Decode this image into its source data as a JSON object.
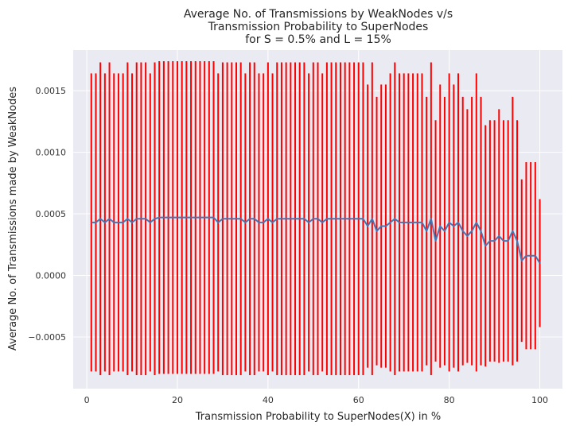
{
  "chart_data": {
    "type": "line",
    "title_lines": [
      "Average No. of Transmissions by WeakNodes v/s",
      "Transmission Probability to SuperNodes",
      "for S = 0.5% and L = 15%"
    ],
    "xlabel": "Transmission Probability to SuperNodes(X) in %",
    "ylabel": "Average No. of Transmissions made by WeakNodes",
    "xlim": [
      -3,
      105
    ],
    "ylim": [
      -0.00092,
      0.00183
    ],
    "xticks": [
      0,
      20,
      40,
      60,
      80,
      100
    ],
    "xtick_labels": [
      "0",
      "20",
      "40",
      "60",
      "80",
      "100"
    ],
    "yticks": [
      -0.0005,
      0.0,
      0.0005,
      0.001,
      0.0015
    ],
    "ytick_labels": [
      "−0.0005",
      "0.0000",
      "0.0005",
      "0.0010",
      "0.0015"
    ],
    "grid": true,
    "background": "#eaeaf2",
    "line_color": "#4c72b0",
    "errorbar_color": "#ff0000",
    "x": [
      1,
      2,
      3,
      4,
      5,
      6,
      7,
      8,
      9,
      10,
      11,
      12,
      13,
      14,
      15,
      16,
      17,
      18,
      19,
      20,
      21,
      22,
      23,
      24,
      25,
      26,
      27,
      28,
      29,
      30,
      31,
      32,
      33,
      34,
      35,
      36,
      37,
      38,
      39,
      40,
      41,
      42,
      43,
      44,
      45,
      46,
      47,
      48,
      49,
      50,
      51,
      52,
      53,
      54,
      55,
      56,
      57,
      58,
      59,
      60,
      61,
      62,
      63,
      64,
      65,
      66,
      67,
      68,
      69,
      70,
      71,
      72,
      73,
      74,
      75,
      76,
      77,
      78,
      79,
      80,
      81,
      82,
      83,
      84,
      85,
      86,
      87,
      88,
      89,
      90,
      91,
      92,
      93,
      94,
      95,
      96,
      97,
      98,
      99,
      100
    ],
    "series": [
      {
        "values": [
          0.00043,
          0.00043,
          0.00046,
          0.00043,
          0.00046,
          0.00043,
          0.00043,
          0.00043,
          0.00046,
          0.00043,
          0.00046,
          0.00046,
          0.00046,
          0.00043,
          0.00046,
          0.00047,
          0.00047,
          0.00047,
          0.00047,
          0.00047,
          0.00047,
          0.00047,
          0.00047,
          0.00047,
          0.00047,
          0.00047,
          0.00047,
          0.00047,
          0.00043,
          0.00046,
          0.00046,
          0.00046,
          0.00046,
          0.00046,
          0.00043,
          0.00046,
          0.00046,
          0.00043,
          0.00043,
          0.00046,
          0.00043,
          0.00046,
          0.00046,
          0.00046,
          0.00046,
          0.00046,
          0.00046,
          0.00046,
          0.00043,
          0.00046,
          0.00046,
          0.00043,
          0.00046,
          0.00046,
          0.00046,
          0.00046,
          0.00046,
          0.00046,
          0.00046,
          0.00046,
          0.00046,
          0.0004,
          0.00046,
          0.00036,
          0.0004,
          0.0004,
          0.00043,
          0.00046,
          0.00043,
          0.00043,
          0.00043,
          0.00043,
          0.00043,
          0.00043,
          0.00036,
          0.00046,
          0.00028,
          0.0004,
          0.00036,
          0.00043,
          0.0004,
          0.00043,
          0.00036,
          0.00032,
          0.00036,
          0.00043,
          0.00036,
          0.00024,
          0.00028,
          0.00028,
          0.00032,
          0.00028,
          0.00028,
          0.00036,
          0.00028,
          0.00012,
          0.00016,
          0.00016,
          0.00016,
          0.0001
        ],
        "error": [
          0.00121,
          0.00121,
          0.00127,
          0.00121,
          0.00127,
          0.00121,
          0.00121,
          0.00121,
          0.00127,
          0.00121,
          0.00127,
          0.00127,
          0.00127,
          0.00121,
          0.00127,
          0.00127,
          0.00127,
          0.00127,
          0.00127,
          0.00127,
          0.00127,
          0.00127,
          0.00127,
          0.00127,
          0.00127,
          0.00127,
          0.00127,
          0.00127,
          0.00121,
          0.00127,
          0.00127,
          0.00127,
          0.00127,
          0.00127,
          0.00121,
          0.00127,
          0.00127,
          0.00121,
          0.00121,
          0.00127,
          0.00121,
          0.00127,
          0.00127,
          0.00127,
          0.00127,
          0.00127,
          0.00127,
          0.00127,
          0.00121,
          0.00127,
          0.00127,
          0.00121,
          0.00127,
          0.00127,
          0.00127,
          0.00127,
          0.00127,
          0.00127,
          0.00127,
          0.00127,
          0.00127,
          0.00115,
          0.00127,
          0.00109,
          0.00115,
          0.00115,
          0.00121,
          0.00127,
          0.00121,
          0.00121,
          0.00121,
          0.00121,
          0.00121,
          0.00121,
          0.00109,
          0.00127,
          0.00098,
          0.00115,
          0.00109,
          0.00121,
          0.00115,
          0.00121,
          0.00109,
          0.00103,
          0.00109,
          0.00121,
          0.00109,
          0.00098,
          0.00098,
          0.00098,
          0.00103,
          0.00098,
          0.00098,
          0.00109,
          0.00098,
          0.00066,
          0.00076,
          0.00076,
          0.00076,
          0.00052
        ]
      }
    ]
  }
}
